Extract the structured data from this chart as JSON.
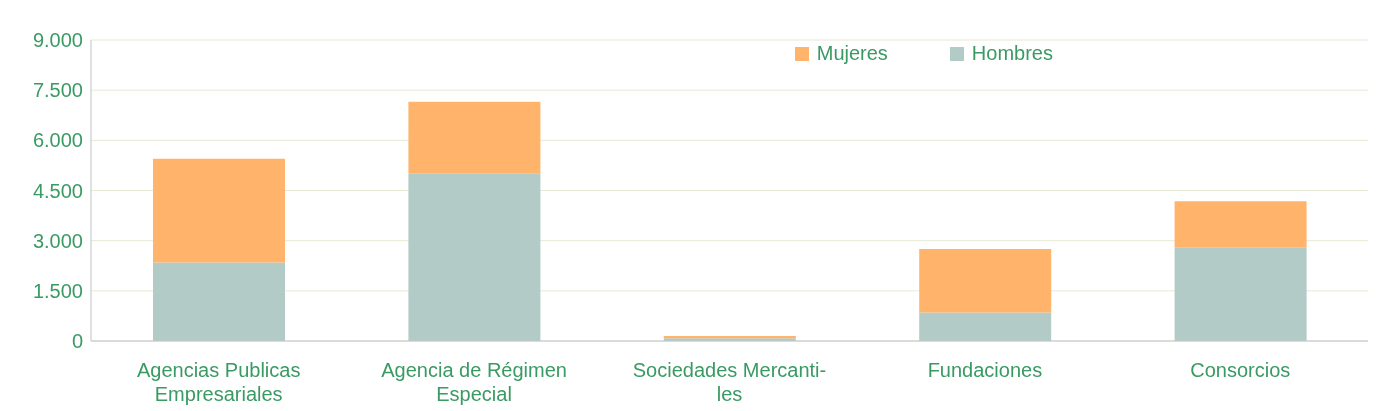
{
  "chart_data": {
    "type": "bar",
    "stacked": true,
    "categories": [
      "Agencias Publicas\nEmpresariales",
      "Agencia de Régimen\nEspecial",
      "Sociedades Mercanti-\nles",
      "Fundaciones",
      "Consorcios"
    ],
    "series": [
      {
        "name": "Hombres",
        "color": "#b3cbc7",
        "values": [
          2350,
          5000,
          80,
          850,
          2800
        ]
      },
      {
        "name": "Mujeres",
        "color": "#ffb36b",
        "values": [
          3100,
          2150,
          70,
          1900,
          1380
        ]
      }
    ],
    "ylim": [
      0,
      9000
    ],
    "yticks": [
      {
        "value": 0,
        "label": "0"
      },
      {
        "value": 1500,
        "label": "1.500"
      },
      {
        "value": 3000,
        "label": "3.000"
      },
      {
        "value": 4500,
        "label": "4.500"
      },
      {
        "value": 6000,
        "label": "6.000"
      },
      {
        "value": 7500,
        "label": "7.500"
      },
      {
        "value": 9000,
        "label": "9.000"
      }
    ],
    "grid": "y",
    "legend": "top right"
  }
}
